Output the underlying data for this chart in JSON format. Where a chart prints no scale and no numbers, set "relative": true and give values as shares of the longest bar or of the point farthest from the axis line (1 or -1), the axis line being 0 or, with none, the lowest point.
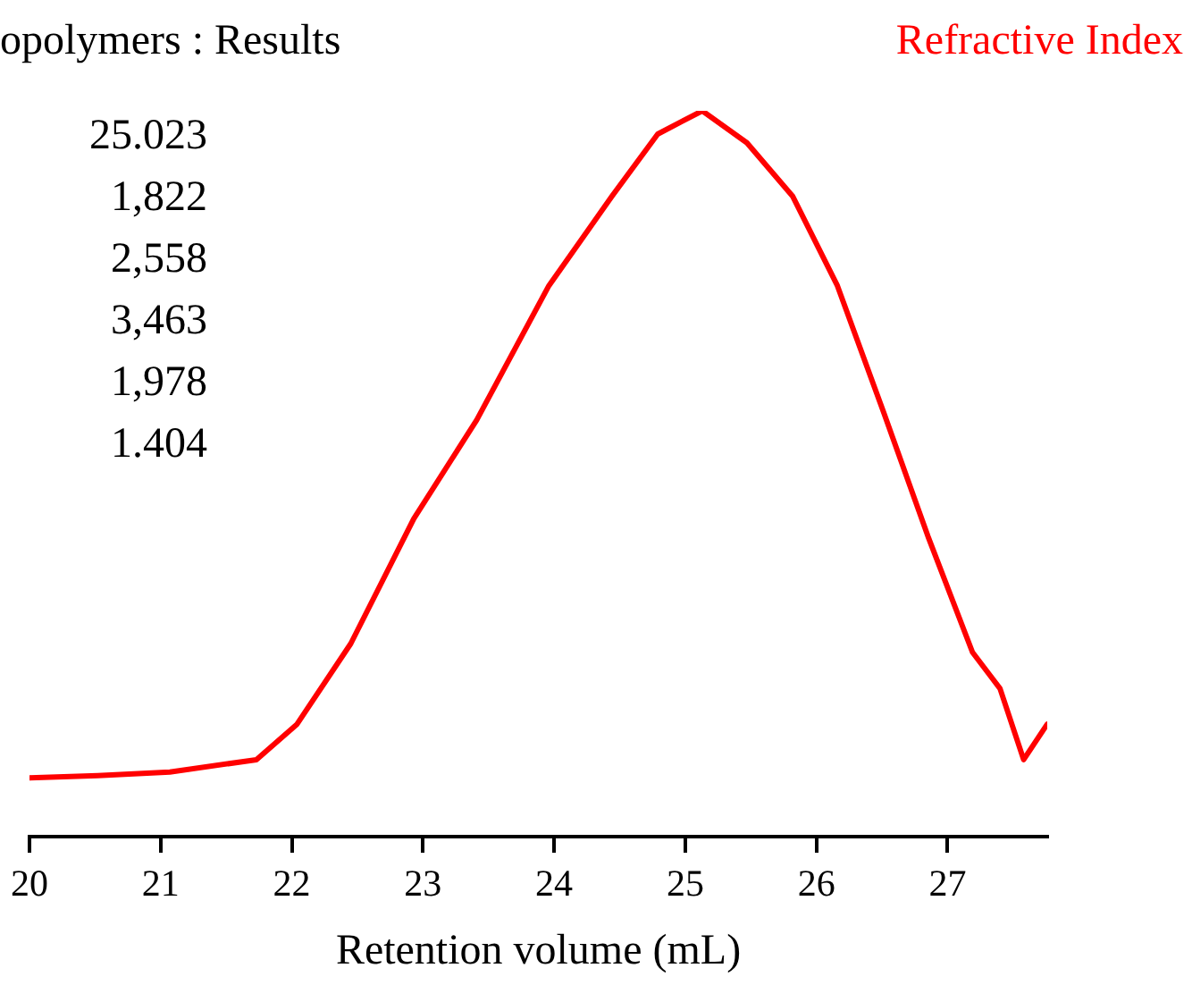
{
  "chart_data": {
    "type": "line",
    "title": "opolymers : Results",
    "xlabel": "Retention volume (mL)",
    "relative": true,
    "x": [
      20,
      20.52,
      21.07,
      21.73,
      22.04,
      22.45,
      22.93,
      23.41,
      23.96,
      24.44,
      24.79,
      25.13,
      25.47,
      25.82,
      26.16,
      26.51,
      26.85,
      27.19,
      27.4,
      27.58,
      27.76
    ],
    "series": [
      {
        "name": "Refractive Index",
        "color": "#ff0000",
        "values": [
          0.081,
          0.084,
          0.089,
          0.106,
          0.155,
          0.266,
          0.438,
          0.574,
          0.759,
          0.882,
          0.968,
          1,
          0.956,
          0.882,
          0.759,
          0.586,
          0.414,
          0.254,
          0.204,
          0.106,
          0.155
        ]
      }
    ],
    "xlim": [
      20,
      27.76
    ],
    "xticks": [
      20,
      21,
      22,
      23,
      24,
      25,
      26,
      27
    ],
    "annotations": [
      "25.023",
      "1,822",
      "2,558",
      "3,463",
      "1,978",
      "1.404"
    ],
    "grid": false,
    "legend": false,
    "marker": "none",
    "line_style": "solid"
  }
}
